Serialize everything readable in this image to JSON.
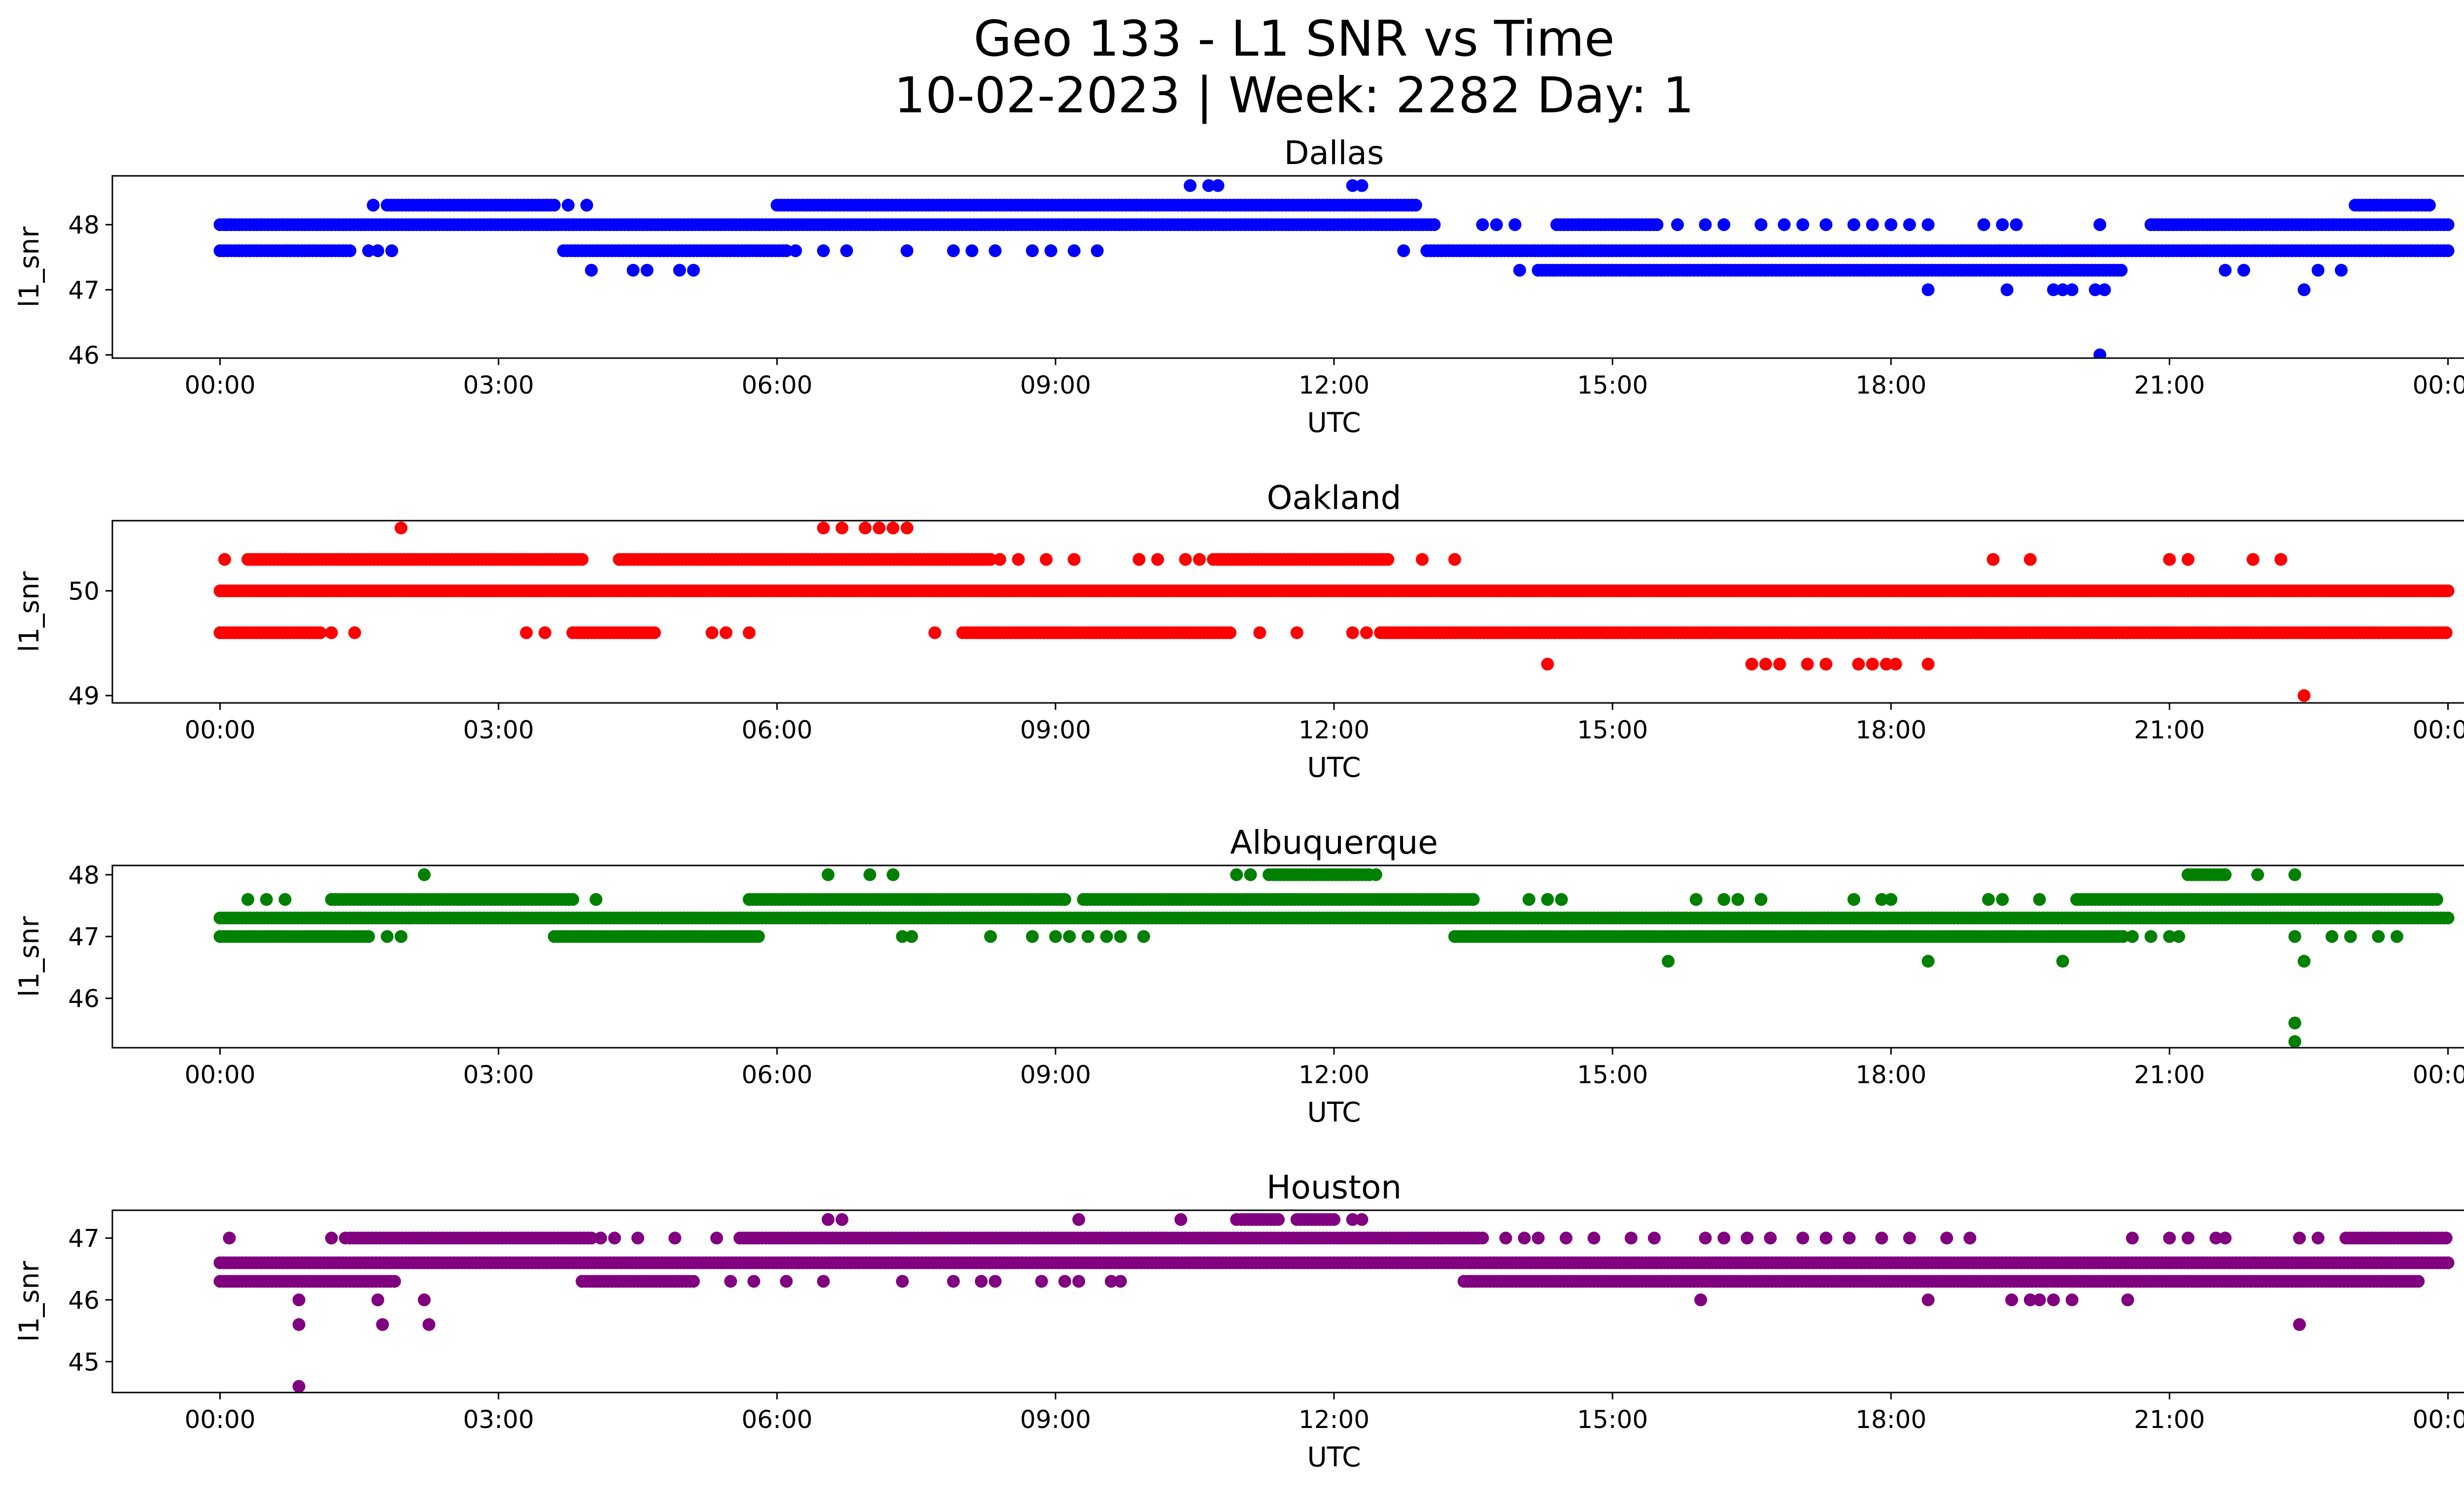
{
  "chart_data": {
    "type": "scatter",
    "title": "Geo 133 - L1 SNR vs Time",
    "subtitle": "10-02-2023 | Week: 2282 Day: 1",
    "xlabel": "UTC",
    "ylabel": "l1_snr",
    "x_ticks": [
      "00:00",
      "03:00",
      "06:00",
      "09:00",
      "12:00",
      "15:00",
      "18:00",
      "21:00",
      "00:00"
    ],
    "xlim_hours": [
      -1.16,
      25.16
    ],
    "grid": false,
    "panels": [
      {
        "name": "Dallas",
        "color": "#0000ff",
        "ylim": [
          45.95,
          48.75
        ],
        "y_ticks": [
          46,
          47,
          48
        ],
        "bands": [
          {
            "y": 48.0,
            "ranges": [
              [
                0.0,
                13.1
              ],
              [
                14.4,
                15.5
              ],
              [
                20.8,
                24.0
              ]
            ]
          },
          {
            "y": 47.6,
            "ranges": [
              [
                0.0,
                1.4
              ],
              [
                3.7,
                6.1
              ],
              [
                13.0,
                24.0
              ]
            ]
          },
          {
            "y": 48.3,
            "ranges": [
              [
                1.8,
                3.6
              ],
              [
                6.0,
                12.9
              ],
              [
                23.0,
                23.8
              ]
            ]
          },
          {
            "y": 47.3,
            "ranges": [
              [
                14.2,
                20.5
              ]
            ]
          }
        ],
        "points": [
          [
            0.05,
            48.0
          ],
          [
            1.6,
            47.6
          ],
          [
            1.7,
            47.6
          ],
          [
            1.85,
            47.6
          ],
          [
            1.65,
            48.3
          ],
          [
            3.75,
            48.3
          ],
          [
            3.95,
            48.3
          ],
          [
            4.0,
            47.3
          ],
          [
            4.45,
            47.3
          ],
          [
            4.6,
            47.3
          ],
          [
            4.95,
            47.3
          ],
          [
            5.1,
            47.3
          ],
          [
            6.2,
            47.6
          ],
          [
            6.5,
            47.6
          ],
          [
            6.75,
            47.6
          ],
          [
            7.4,
            47.6
          ],
          [
            7.9,
            47.6
          ],
          [
            8.1,
            47.6
          ],
          [
            8.35,
            47.6
          ],
          [
            8.75,
            47.6
          ],
          [
            8.95,
            47.6
          ],
          [
            9.2,
            47.6
          ],
          [
            9.45,
            47.6
          ],
          [
            10.45,
            48.6
          ],
          [
            10.65,
            48.6
          ],
          [
            10.75,
            48.6
          ],
          [
            12.2,
            48.6
          ],
          [
            12.3,
            48.6
          ],
          [
            12.75,
            47.6
          ],
          [
            13.6,
            48.0
          ],
          [
            13.75,
            48.0
          ],
          [
            13.95,
            48.0
          ],
          [
            15.7,
            48.0
          ],
          [
            16.0,
            48.0
          ],
          [
            16.2,
            48.0
          ],
          [
            16.6,
            48.0
          ],
          [
            16.85,
            48.0
          ],
          [
            17.05,
            48.0
          ],
          [
            17.3,
            48.0
          ],
          [
            17.6,
            48.0
          ],
          [
            17.8,
            48.0
          ],
          [
            18.0,
            48.0
          ],
          [
            18.2,
            48.0
          ],
          [
            18.4,
            48.0
          ],
          [
            19.0,
            48.0
          ],
          [
            19.2,
            48.0
          ],
          [
            19.35,
            48.0
          ],
          [
            14.0,
            47.3
          ],
          [
            14.2,
            47.3
          ],
          [
            21.6,
            47.3
          ],
          [
            21.8,
            47.3
          ],
          [
            22.6,
            47.3
          ],
          [
            22.85,
            47.3
          ],
          [
            18.4,
            47.0
          ],
          [
            19.25,
            47.0
          ],
          [
            19.75,
            47.0
          ],
          [
            19.85,
            47.0
          ],
          [
            19.95,
            47.0
          ],
          [
            20.2,
            47.0
          ],
          [
            20.3,
            47.0
          ],
          [
            22.45,
            47.0
          ],
          [
            20.25,
            46.0
          ],
          [
            20.25,
            48.0
          ]
        ]
      },
      {
        "name": "Oakland",
        "color": "#ff0000",
        "ylim": [
          48.93,
          50.67
        ],
        "y_ticks": [
          49,
          50
        ],
        "bands": [
          {
            "y": 50.0,
            "ranges": [
              [
                0.0,
                24.0
              ]
            ]
          },
          {
            "y": 49.6,
            "ranges": [
              [
                0.0,
                1.1
              ],
              [
                3.8,
                4.7
              ],
              [
                8.0,
                10.9
              ],
              [
                12.5,
                24.0
              ]
            ]
          },
          {
            "y": 50.3,
            "ranges": [
              [
                0.3,
                3.9
              ],
              [
                4.3,
                8.3
              ],
              [
                10.7,
                12.6
              ]
            ]
          }
        ],
        "points": [
          [
            0.05,
            50.3
          ],
          [
            1.2,
            49.6
          ],
          [
            1.45,
            49.6
          ],
          [
            3.3,
            49.6
          ],
          [
            3.5,
            49.6
          ],
          [
            5.3,
            49.6
          ],
          [
            5.45,
            49.6
          ],
          [
            5.7,
            49.6
          ],
          [
            7.7,
            49.6
          ],
          [
            11.2,
            49.6
          ],
          [
            11.6,
            49.6
          ],
          [
            12.2,
            49.6
          ],
          [
            12.35,
            49.6
          ],
          [
            1.95,
            50.6
          ],
          [
            6.5,
            50.6
          ],
          [
            6.7,
            50.6
          ],
          [
            6.95,
            50.6
          ],
          [
            7.1,
            50.6
          ],
          [
            7.25,
            50.6
          ],
          [
            7.4,
            50.6
          ],
          [
            8.4,
            50.3
          ],
          [
            8.6,
            50.3
          ],
          [
            8.9,
            50.3
          ],
          [
            9.2,
            50.3
          ],
          [
            9.9,
            50.3
          ],
          [
            10.1,
            50.3
          ],
          [
            10.4,
            50.3
          ],
          [
            10.55,
            50.3
          ],
          [
            12.95,
            50.3
          ],
          [
            13.3,
            50.3
          ],
          [
            19.1,
            50.3
          ],
          [
            19.5,
            50.3
          ],
          [
            21.0,
            50.3
          ],
          [
            21.2,
            50.3
          ],
          [
            21.9,
            50.3
          ],
          [
            22.2,
            50.3
          ],
          [
            14.3,
            49.3
          ],
          [
            16.5,
            49.3
          ],
          [
            16.65,
            49.3
          ],
          [
            16.8,
            49.3
          ],
          [
            17.1,
            49.3
          ],
          [
            17.3,
            49.3
          ],
          [
            17.65,
            49.3
          ],
          [
            17.8,
            49.3
          ],
          [
            17.95,
            49.3
          ],
          [
            18.05,
            49.3
          ],
          [
            18.4,
            49.3
          ],
          [
            22.45,
            49.0
          ]
        ]
      },
      {
        "name": "Albuquerque",
        "color": "#008000",
        "ylim": [
          45.2,
          48.15
        ],
        "y_ticks": [
          46,
          47,
          48
        ],
        "bands": [
          {
            "y": 47.3,
            "ranges": [
              [
                0.0,
                24.0
              ]
            ]
          },
          {
            "y": 47.0,
            "ranges": [
              [
                0.0,
                1.6
              ],
              [
                3.6,
                5.8
              ],
              [
                13.3,
                20.5
              ]
            ]
          },
          {
            "y": 47.6,
            "ranges": [
              [
                1.2,
                3.8
              ],
              [
                5.7,
                9.1
              ],
              [
                9.3,
                13.5
              ],
              [
                20.0,
                23.9
              ]
            ]
          },
          {
            "y": 48.0,
            "ranges": [
              [
                11.3,
                12.4
              ],
              [
                21.2,
                21.6
              ]
            ]
          }
        ],
        "points": [
          [
            0.3,
            47.6
          ],
          [
            0.5,
            47.6
          ],
          [
            0.7,
            47.6
          ],
          [
            1.8,
            47.0
          ],
          [
            1.95,
            47.0
          ],
          [
            4.05,
            47.6
          ],
          [
            2.2,
            48.0
          ],
          [
            6.55,
            48.0
          ],
          [
            7.0,
            48.0
          ],
          [
            7.25,
            48.0
          ],
          [
            10.95,
            48.0
          ],
          [
            11.1,
            48.0
          ],
          [
            12.45,
            48.0
          ],
          [
            21.95,
            48.0
          ],
          [
            22.35,
            48.0
          ],
          [
            7.35,
            47.0
          ],
          [
            7.45,
            47.0
          ],
          [
            8.3,
            47.0
          ],
          [
            8.75,
            47.0
          ],
          [
            9.0,
            47.0
          ],
          [
            9.15,
            47.0
          ],
          [
            9.35,
            47.0
          ],
          [
            9.55,
            47.0
          ],
          [
            9.7,
            47.0
          ],
          [
            9.95,
            47.0
          ],
          [
            14.1,
            47.6
          ],
          [
            14.3,
            47.6
          ],
          [
            14.45,
            47.6
          ],
          [
            15.9,
            47.6
          ],
          [
            16.2,
            47.6
          ],
          [
            16.35,
            47.6
          ],
          [
            16.6,
            47.6
          ],
          [
            17.9,
            47.6
          ],
          [
            17.6,
            47.6
          ],
          [
            18.0,
            47.6
          ],
          [
            19.05,
            47.6
          ],
          [
            19.2,
            47.6
          ],
          [
            19.6,
            47.6
          ],
          [
            20.6,
            47.0
          ],
          [
            20.8,
            47.0
          ],
          [
            21.0,
            47.0
          ],
          [
            21.1,
            47.0
          ],
          [
            22.35,
            47.0
          ],
          [
            22.75,
            47.0
          ],
          [
            22.95,
            47.0
          ],
          [
            23.25,
            47.0
          ],
          [
            23.45,
            47.0
          ],
          [
            15.6,
            46.6
          ],
          [
            18.4,
            46.6
          ],
          [
            19.85,
            46.6
          ],
          [
            22.45,
            46.6
          ],
          [
            22.35,
            45.6
          ],
          [
            22.35,
            45.3
          ]
        ]
      },
      {
        "name": "Houston",
        "color": "#800080",
        "ylim": [
          44.5,
          47.45
        ],
        "y_ticks": [
          45,
          46,
          47
        ],
        "bands": [
          {
            "y": 46.6,
            "ranges": [
              [
                0.0,
                24.0
              ]
            ]
          },
          {
            "y": 46.3,
            "ranges": [
              [
                0.0,
                1.9
              ],
              [
                3.9,
                5.1
              ],
              [
                13.4,
                23.7
              ]
            ]
          },
          {
            "y": 47.0,
            "ranges": [
              [
                1.4,
                4.0
              ],
              [
                5.6,
                13.6
              ],
              [
                22.9,
                24.0
              ]
            ]
          },
          {
            "y": 47.3,
            "ranges": [
              [
                11.0,
                11.4
              ],
              [
                11.6,
                12.0
              ]
            ]
          }
        ],
        "points": [
          [
            0.1,
            47.0
          ],
          [
            1.2,
            47.0
          ],
          [
            1.35,
            47.0
          ],
          [
            4.1,
            47.0
          ],
          [
            4.25,
            47.0
          ],
          [
            4.5,
            47.0
          ],
          [
            4.9,
            47.0
          ],
          [
            5.35,
            47.0
          ],
          [
            3.9,
            46.3
          ],
          [
            5.5,
            46.3
          ],
          [
            5.75,
            46.3
          ],
          [
            6.1,
            46.3
          ],
          [
            6.5,
            46.3
          ],
          [
            7.35,
            46.3
          ],
          [
            7.9,
            46.3
          ],
          [
            8.2,
            46.3
          ],
          [
            8.35,
            46.3
          ],
          [
            8.85,
            46.3
          ],
          [
            9.1,
            46.3
          ],
          [
            9.25,
            46.3
          ],
          [
            9.6,
            46.3
          ],
          [
            9.7,
            46.3
          ],
          [
            6.55,
            47.3
          ],
          [
            6.7,
            47.3
          ],
          [
            9.25,
            47.3
          ],
          [
            10.35,
            47.3
          ],
          [
            10.95,
            47.3
          ],
          [
            12.2,
            47.3
          ],
          [
            12.3,
            47.3
          ],
          [
            13.85,
            47.0
          ],
          [
            14.05,
            47.0
          ],
          [
            14.2,
            47.0
          ],
          [
            14.5,
            47.0
          ],
          [
            14.8,
            47.0
          ],
          [
            15.2,
            47.0
          ],
          [
            15.45,
            47.0
          ],
          [
            16.0,
            47.0
          ],
          [
            16.2,
            47.0
          ],
          [
            16.45,
            47.0
          ],
          [
            16.7,
            47.0
          ],
          [
            17.05,
            47.0
          ],
          [
            17.3,
            47.0
          ],
          [
            17.55,
            47.0
          ],
          [
            17.9,
            47.0
          ],
          [
            18.2,
            47.0
          ],
          [
            18.6,
            47.0
          ],
          [
            18.85,
            47.0
          ],
          [
            20.6,
            47.0
          ],
          [
            21.0,
            47.0
          ],
          [
            21.2,
            47.0
          ],
          [
            21.5,
            47.0
          ],
          [
            21.6,
            47.0
          ],
          [
            22.4,
            47.0
          ],
          [
            22.6,
            47.0
          ],
          [
            0.85,
            46.0
          ],
          [
            1.7,
            46.0
          ],
          [
            2.2,
            46.0
          ],
          [
            15.95,
            46.0
          ],
          [
            18.4,
            46.0
          ],
          [
            19.3,
            46.0
          ],
          [
            19.5,
            46.0
          ],
          [
            19.6,
            46.0
          ],
          [
            19.75,
            46.0
          ],
          [
            19.95,
            46.0
          ],
          [
            20.55,
            46.0
          ],
          [
            0.85,
            45.6
          ],
          [
            1.75,
            45.6
          ],
          [
            2.25,
            45.6
          ],
          [
            22.4,
            45.6
          ],
          [
            0.85,
            44.6
          ]
        ]
      }
    ]
  }
}
